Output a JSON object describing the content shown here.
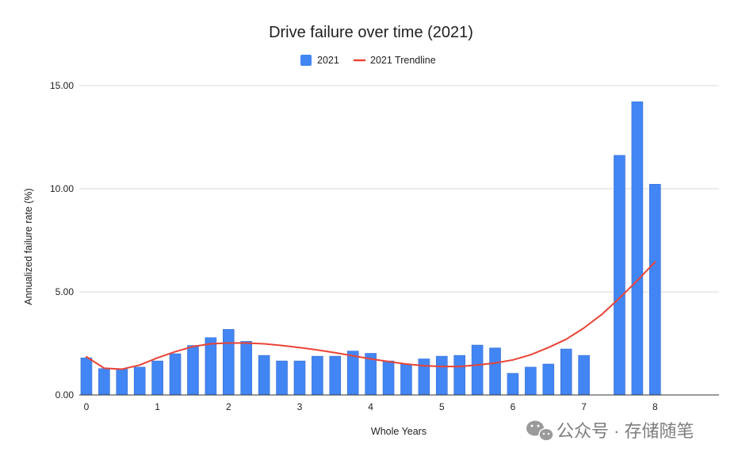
{
  "chart_data": {
    "type": "bar",
    "title": "Drive failure over time (2021)",
    "xlabel": "Whole Years",
    "ylabel": "Annualized failure rate (%)",
    "ylim": [
      0,
      15
    ],
    "yticks": [
      "0.00",
      "5.00",
      "10.00",
      "15.00"
    ],
    "ytick_values": [
      0,
      5,
      10,
      15
    ],
    "xlim": [
      -0.1,
      8.9
    ],
    "xticks": [
      0,
      1,
      2,
      3,
      4,
      5,
      6,
      7,
      8
    ],
    "grid": true,
    "legend_position": "top-center",
    "legend": [
      {
        "name": "2021",
        "kind": "bar",
        "color": "#4285F4"
      },
      {
        "name": "2021 Trendline",
        "kind": "line",
        "color": "#EA4335"
      }
    ],
    "series": [
      {
        "name": "2021",
        "kind": "bar",
        "color": "#4285F4",
        "x": [
          0,
          0.25,
          0.5,
          0.75,
          1,
          1.25,
          1.5,
          1.75,
          2,
          2.25,
          2.5,
          2.75,
          3,
          3.25,
          3.5,
          3.75,
          4,
          4.25,
          4.5,
          4.75,
          5,
          5.25,
          5.5,
          5.75,
          6,
          6.25,
          6.5,
          6.75,
          7,
          7.5,
          7.75,
          8
        ],
        "values": [
          1.8,
          1.28,
          1.25,
          1.35,
          1.65,
          2.0,
          2.4,
          2.78,
          3.18,
          2.6,
          1.92,
          1.65,
          1.65,
          1.88,
          1.88,
          2.13,
          2.02,
          1.65,
          1.5,
          1.75,
          1.88,
          1.92,
          2.42,
          2.28,
          1.05,
          1.35,
          1.5,
          2.23,
          1.92,
          11.62,
          14.22,
          10.22
        ]
      },
      {
        "name": "2021 Trendline",
        "kind": "line",
        "color": "#EA4335",
        "x": [
          0,
          0.25,
          0.5,
          0.75,
          1,
          1.25,
          1.5,
          1.75,
          2,
          2.25,
          2.5,
          2.75,
          3,
          3.25,
          3.5,
          3.75,
          4,
          4.25,
          4.5,
          4.75,
          5,
          5.25,
          5.5,
          5.75,
          6,
          6.25,
          6.5,
          6.75,
          7,
          7.25,
          7.5,
          7.75,
          8
        ],
        "values": [
          1.85,
          1.3,
          1.25,
          1.45,
          1.8,
          2.1,
          2.35,
          2.48,
          2.52,
          2.52,
          2.48,
          2.4,
          2.3,
          2.18,
          2.05,
          1.9,
          1.75,
          1.62,
          1.5,
          1.42,
          1.38,
          1.38,
          1.45,
          1.55,
          1.7,
          1.95,
          2.3,
          2.7,
          3.25,
          3.9,
          4.7,
          5.55,
          6.45
        ]
      }
    ]
  },
  "watermark": {
    "text": "公众号 · 存储随笔",
    "icon": "wechat-icon"
  }
}
